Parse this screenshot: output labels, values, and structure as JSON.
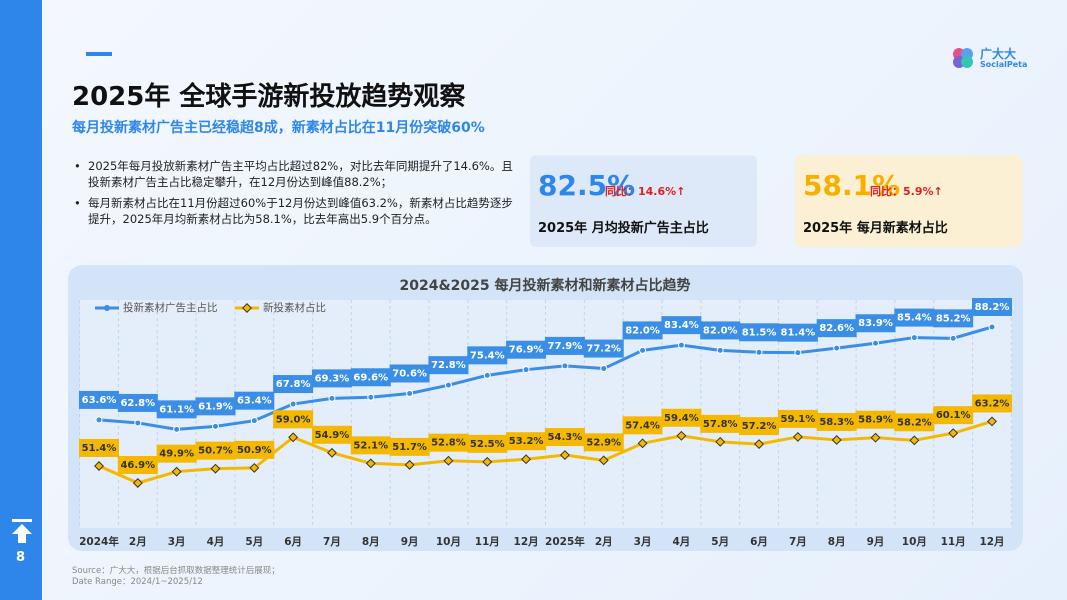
{
  "header": {
    "title": "2025年 全球手游新投放趋势观察",
    "subtitle": "每月投新素材广告主已经稳超8成，新素材占比在11月份突破60%"
  },
  "bullets": [
    "2025年每月投放新素材广告主平均占比超过82%，对比去年同期提升了14.6%。且投新素材广告主占比稳定攀升，在12月份达到峰值88.2%；",
    "每月新素材占比在11月份超过60%于12月份达到峰值63.2%，新素材占比趋势逐步提升，2025年月均新素材占比为58.1%，比去年高出5.9个百分点。"
  ],
  "cards": [
    {
      "value": "82.5%",
      "change": "同比：14.6%↑",
      "label": "2025年 月均投新广告主占比"
    },
    {
      "value": "58.1%",
      "change": "同比：5.9%↑",
      "label": "2025年 每月新素材占比"
    }
  ],
  "logo": {
    "name": "广大大",
    "sub": "SocialPeta"
  },
  "page_number": "8",
  "source": [
    "Source：广大大，根据后台抓取数据整理统计后展现；",
    "Date Range：2024/1~2025/12"
  ],
  "chart_data": {
    "type": "line",
    "title": "2024&2025 每月投新素材和新素材占比趋势",
    "categories": [
      "2024年",
      "2月",
      "3月",
      "4月",
      "5月",
      "6月",
      "7月",
      "8月",
      "9月",
      "10月",
      "11月",
      "12月",
      "2025年",
      "2月",
      "3月",
      "4月",
      "5月",
      "6月",
      "7月",
      "8月",
      "9月",
      "10月",
      "11月",
      "12月"
    ],
    "series": [
      {
        "name": "投新素材广告主占比",
        "color": "#3a8ee6",
        "values": [
          63.6,
          62.8,
          61.1,
          61.9,
          63.4,
          67.8,
          69.3,
          69.6,
          70.6,
          72.8,
          75.4,
          76.9,
          77.9,
          77.2,
          82.0,
          83.4,
          82.0,
          81.5,
          81.4,
          82.6,
          83.9,
          85.4,
          85.2,
          88.2
        ],
        "value_labels": [
          "63.6%",
          "62.8%",
          "61.1%",
          "61.9%",
          "63.4%",
          "67.8%",
          "69.3%",
          "69.6%",
          "70.6%",
          "72.8%",
          "75.4%",
          "76.9%",
          "77.9%",
          "77.2%",
          "82.0%",
          "83.4%",
          "82.0%",
          "81.5%",
          "81.4%",
          "82.6%",
          "83.9%",
          "85.4%",
          "85.2%",
          "88.2%"
        ]
      },
      {
        "name": "新投素材占比",
        "color": "#f5b800",
        "values": [
          51.4,
          46.9,
          49.9,
          50.7,
          50.9,
          59.0,
          54.9,
          52.1,
          51.7,
          52.8,
          52.5,
          53.2,
          54.3,
          52.9,
          57.4,
          59.4,
          57.8,
          57.2,
          59.1,
          58.3,
          58.9,
          58.2,
          60.1,
          63.2
        ],
        "value_labels": [
          "51.4%",
          "46.9%",
          "49.9%",
          "50.7%",
          "50.9%",
          "59.0%",
          "54.9%",
          "52.1%",
          "51.7%",
          "52.8%",
          "52.5%",
          "53.2%",
          "54.3%",
          "52.9%",
          "57.4%",
          "59.4%",
          "57.8%",
          "57.2%",
          "59.1%",
          "58.3%",
          "58.9%",
          "58.2%",
          "60.1%",
          "63.2%"
        ]
      }
    ],
    "legend": "top-left",
    "grid": true
  }
}
